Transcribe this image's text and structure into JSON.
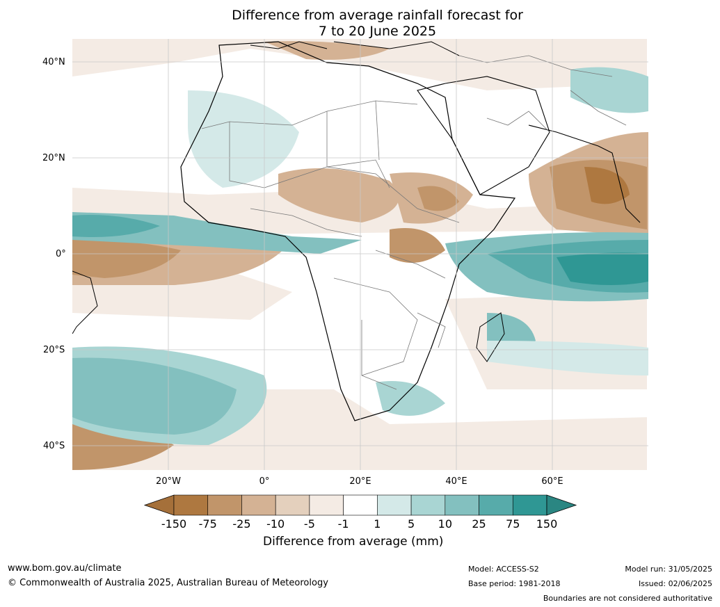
{
  "title_line1": "Difference from average rainfall forecast for",
  "title_line2": "7 to 20 June 2025",
  "lat_labels": [
    "40°N",
    "20°N",
    "0°",
    "20°S",
    "40°S"
  ],
  "lon_labels": [
    "20°W",
    "0°",
    "20°E",
    "40°E",
    "60°E"
  ],
  "colorbar": {
    "ticks": [
      "-150",
      "-75",
      "-25",
      "-10",
      "-5",
      "-1",
      "1",
      "5",
      "10",
      "25",
      "75",
      "150"
    ],
    "colors": [
      "#a5703a",
      "#ae7840",
      "#c1956a",
      "#d4b294",
      "#e4d0bd",
      "#f4ebe4",
      "#ffffff",
      "#d4e9e8",
      "#a9d5d3",
      "#83c0bf",
      "#57abaa",
      "#2f9794",
      "#2a8682"
    ],
    "label": "Difference from average (mm)"
  },
  "footer": {
    "url": "www.bom.gov.au/climate",
    "copyright": "© Commonwealth of Australia 2025, Australian Bureau of Meteorology",
    "model": "Model: ACCESS-S2",
    "base_period": "Base period: 1981-2018",
    "model_run": "Model run: 31/05/2025",
    "issued": "Issued: 02/06/2025",
    "disclaimer": "Boundaries are not considered authoritative"
  }
}
